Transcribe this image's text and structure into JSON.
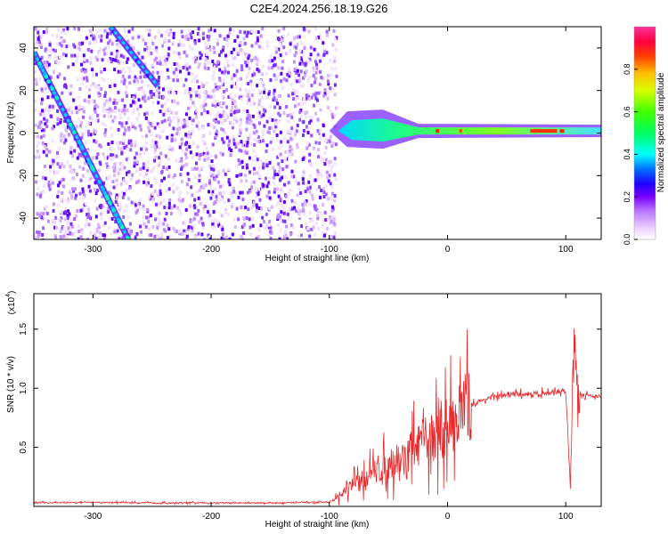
{
  "title": "C2E4.2024.256.18.19.G26",
  "chart_data": [
    {
      "type": "heatmap",
      "xlabel": "Height of straight line (km)",
      "ylabel": "Frequency (Hz)",
      "xlim": [
        -350,
        130
      ],
      "ylim": [
        -50,
        50
      ],
      "x_ticks": [
        "-300",
        "-200",
        "-100",
        "0",
        "100"
      ],
      "y_ticks": [
        "40",
        "20",
        "0",
        "-20",
        "-40"
      ],
      "colorbar": {
        "label": "Normalized spectral amplitude",
        "range": [
          0,
          1
        ],
        "ticks": [
          "0.0",
          "0.2",
          "0.4",
          "0.6",
          "0.8"
        ]
      },
      "features": [
        {
          "kind": "diagonal streak",
          "x": [
            -350,
            -270
          ],
          "y": [
            38,
            -50
          ]
        },
        {
          "kind": "diagonal streak",
          "x": [
            -285,
            -245
          ],
          "y": [
            50,
            22
          ]
        },
        {
          "kind": "noise region",
          "x": [
            -350,
            -95
          ]
        },
        {
          "kind": "signal band near 0 Hz",
          "x": [
            -100,
            130
          ],
          "y": [
            0,
            2
          ]
        }
      ]
    },
    {
      "type": "line",
      "xlabel": "Height of straight line (km)",
      "ylabel": "SNR (10 * v/v)",
      "y_multiplier": "(x10",
      "y_multiplier_exp": "4",
      "y_multiplier_close": ")",
      "xlim": [
        -350,
        130
      ],
      "ylim": [
        0,
        18000
      ],
      "x_ticks": [
        "-300",
        "-200",
        "-100",
        "0",
        "100"
      ],
      "y_ticks": [
        "1.5",
        "1.0",
        "0.5"
      ],
      "color": "#e8282a",
      "series": [
        {
          "x": [
            -350,
            -300,
            -250,
            -200,
            -150,
            -100,
            -90,
            -80,
            -70,
            -60,
            -50,
            -40,
            -30,
            -20,
            -10,
            0,
            10,
            20,
            30,
            40,
            50,
            60,
            70,
            80,
            90,
            100,
            104,
            106,
            108,
            110,
            120,
            130
          ],
          "y": [
            300,
            350,
            300,
            300,
            300,
            350,
            900,
            1800,
            2500,
            3000,
            3500,
            4000,
            4800,
            5500,
            6000,
            6800,
            7800,
            8600,
            9000,
            9300,
            9400,
            9500,
            9500,
            9600,
            9600,
            9800,
            1500,
            12000,
            15000,
            9500,
            9400,
            9300
          ]
        }
      ]
    }
  ]
}
